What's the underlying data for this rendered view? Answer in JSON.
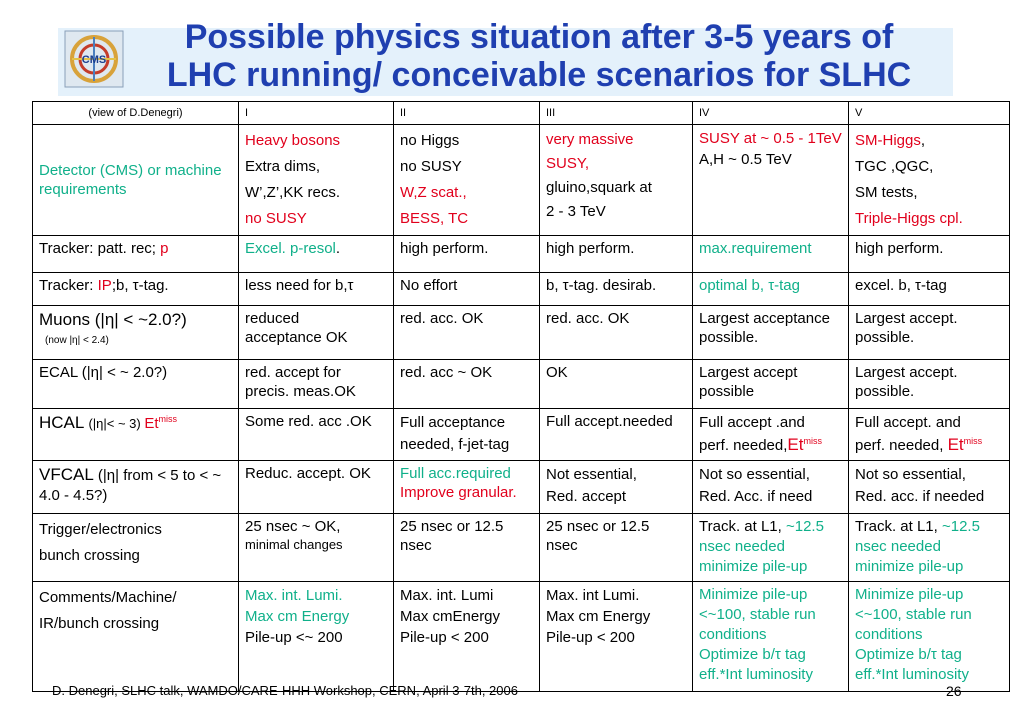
{
  "header": {
    "title_line1": "Possible physics situation after 3-5 years of",
    "title_line2": "LHC running/ conceivable scenarios for SLHC",
    "logo_text": "CMS"
  },
  "table": {
    "head": [
      "(view of D.Denegri)",
      "I",
      "II",
      "III",
      "IV",
      "V"
    ],
    "r1": {
      "label": "Detector (CMS)  or machine requirements",
      "c1": [
        "Heavy bosons",
        "Extra dims,",
        "W’,Z’,KK recs.",
        "no SUSY"
      ],
      "c2": [
        "no Higgs",
        "no SUSY",
        "W,Z scat.,",
        "BESS, TC"
      ],
      "c3": [
        "very massive",
        "SUSY,",
        "gluino,squark at",
        "2 - 3 TeV"
      ],
      "c4": [
        "SUSY at ~ 0.5 - 1TeV",
        "A,H ~ 0.5 TeV"
      ],
      "c5": [
        "SM-Higgs",
        ",",
        "TGC ,QGC,",
        "SM tests,",
        "Triple-Higgs cpl."
      ]
    },
    "r2": {
      "label": "Tracker: patt. rec; ",
      "label_p": "p",
      "c1": "Excel. p-resol",
      "c1_dot": ".",
      "c2": "high perform",
      "c2_dot": ".",
      "c3": "high perform",
      "c3_dot": ".",
      "c4": "max.requirement",
      "c5": "high perform",
      "c5_dot": "."
    },
    "r3": {
      "label_a": "Tracker: ",
      "label_ip": "IP",
      "label_b": ";b, τ-tag.",
      "c1": "less need for b,τ",
      "c2": "No effort",
      "c3": "b, τ-tag. desirab.",
      "c4": "optimal b, τ-tag",
      "c5": "excel. b, τ-tag"
    },
    "r4": {
      "label": "Muons (|η| < ~2.0?)",
      "sublabel": "(now |η| <  2.4)",
      "c1": [
        "reduced",
        "acceptance OK"
      ],
      "c2": "red. acc. OK",
      "c3": "red. acc. OK",
      "c4": [
        "Largest acceptance",
        "possible."
      ],
      "c5": [
        "Largest  accept.",
        "possible."
      ]
    },
    "r5": {
      "label": "ECAL (|η| < ~ 2.0?)",
      "c1": [
        "red. accept for",
        "precis. meas.OK"
      ],
      "c2": "red. acc ~ OK",
      "c3": "OK",
      "c4": [
        "Largest  accept",
        "possible"
      ],
      "c5": [
        "Largest  accept.",
        "possible."
      ]
    },
    "r6": {
      "label_a": "HCAL ",
      "label_b": "(|η|< ~ 3) ",
      "label_et": "Et",
      "label_miss": "miss",
      "c1": "Some red. acc .OK",
      "c2": [
        "Full  acceptance",
        "needed, f-jet-tag"
      ],
      "c3": "Full accept.needed",
      "c4_a": "Full accept .and",
      "c4_b": "perf. needed,",
      "c4_et": "Et",
      "c4_miss": "miss",
      "c5_a": "Full accept. and",
      "c5_b": "perf. needed, ",
      "c5_et": "Et",
      "c5_miss": "miss"
    },
    "r7": {
      "label_a": "VFCAL ",
      "label_b": "(|η| from < 5 to < ~  4.0 - 4.5?)",
      "c1": "Reduc. accept. OK",
      "c2_a": "Full acc.required",
      "c2_b": "Improve granular.",
      "c3": [
        "Not essential,",
        "Red. accept"
      ],
      "c4": [
        "Not so essential,",
        "Red. Acc. if need"
      ],
      "c5": [
        "Not so essential,",
        "Red. acc. if needed"
      ]
    },
    "r8": {
      "label": [
        "Trigger/electronics",
        "bunch crossing"
      ],
      "c1": [
        "25 nsec ~ OK,",
        "minimal changes"
      ],
      "c2": [
        "25 nsec or 12.5",
        "nsec"
      ],
      "c3": [
        "25 nsec or 12.5",
        "nsec"
      ],
      "c4_a": "Track. at L1, ",
      "c4_b": "~12.5 nsec needed",
      "c4_c": "minimize pile-up",
      "c5_a": "Track. at L1, ",
      "c5_b": "~12.5 nsec needed",
      "c5_c": "minimize pile-up"
    },
    "r9": {
      "label": [
        "Comments/Machine/",
        "IR/bunch crossing"
      ],
      "c1_a": "Max. int. Lumi.",
      "c1_b": "Max cm Energy",
      "c1_c": "Pile-up <~ 200",
      "c2": [
        "Max. int. Lumi",
        "Max cmEnergy",
        "Pile-up < 200"
      ],
      "c3": [
        "Max. int Lumi.",
        "Max cm Energy",
        "Pile-up < 200"
      ],
      "c4": [
        "Minimize pile-up",
        "<~100, stable run conditions",
        "Optimize b/τ tag",
        "eff.*Int luminosity"
      ],
      "c5": [
        "Minimize pile-up",
        "<~100, stable run conditions",
        "Optimize b/τ tag",
        "eff.*Int luminosity"
      ]
    }
  },
  "footer": {
    "text": "D. Denegri, SLHC talk, WAMDO/CARE-HHH  Workshop, CERN,  April 3-7th, 2006",
    "page": "26"
  },
  "colors": {
    "title": "#1f3fb0",
    "red": "#e1001c",
    "green": "#10b08a",
    "band": "#e4f1fb"
  }
}
